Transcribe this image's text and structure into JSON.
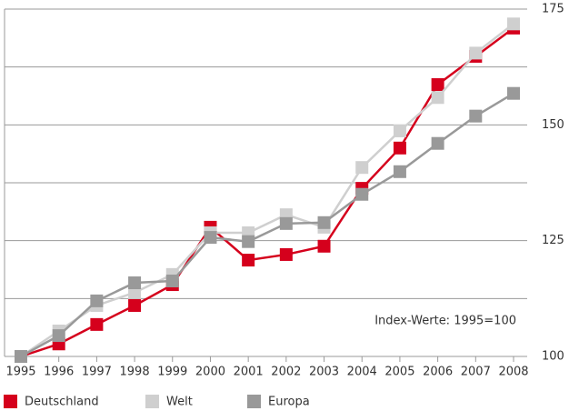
{
  "chart_data": {
    "type": "line",
    "categories": [
      "1995",
      "1996",
      "1997",
      "1998",
      "1999",
      "2000",
      "2001",
      "2002",
      "2003",
      "2004",
      "2005",
      "2006",
      "2007",
      "2008"
    ],
    "series": [
      {
        "name": "Deutschland",
        "color": "#d5001c",
        "values": [
          100,
          102.7,
          106.9,
          111,
          115.5,
          127.9,
          120.8,
          122,
          123.8,
          136.3,
          145,
          158.7,
          164.8,
          170.9
        ]
      },
      {
        "name": "Welt",
        "color": "#cfcfcf",
        "values": [
          100,
          105.5,
          111,
          113.8,
          117.7,
          126.7,
          126.7,
          130.6,
          127.9,
          140.8,
          148.7,
          155.9,
          165.5,
          171.8
        ]
      },
      {
        "name": "Europa",
        "color": "#999999",
        "values": [
          100,
          104.5,
          112,
          115.9,
          116.3,
          125.7,
          124.8,
          128.7,
          128.9,
          135,
          139.9,
          146,
          151.9,
          156.8
        ]
      }
    ],
    "ylim": [
      100,
      175
    ],
    "yticks": [
      100,
      125,
      150,
      175
    ],
    "minor_yticks": [
      112.5,
      137.5,
      162.5
    ],
    "grid": true,
    "legend": "bottom",
    "annotation": "Index-Werte: 1995=100"
  }
}
